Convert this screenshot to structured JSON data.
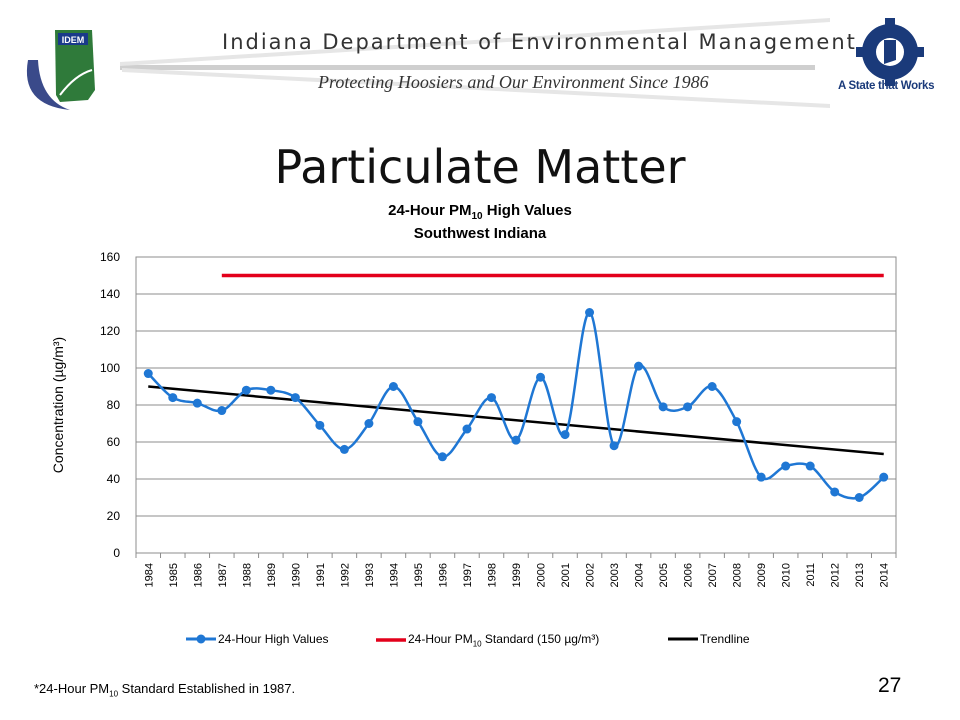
{
  "header": {
    "logo_text": "IDEM",
    "agency_name": "Indiana Department of Environmental Management",
    "tagline": "Protecting Hoosiers and Our Environment Since 1986",
    "state_slogan": "A State that Works"
  },
  "slide": {
    "title": "Particulate Matter",
    "page_number": "27",
    "footnote_pre": "*24-Hour PM",
    "footnote_sub": "10",
    "footnote_post": " Standard Established in 1987."
  },
  "chart_data": {
    "type": "line",
    "title_pre": "24-Hour PM",
    "title_sub": "10",
    "title_post": " High Values",
    "subtitle": "Southwest Indiana",
    "ylabel": "Concentration (µg/m³)",
    "xlabel": "",
    "ylim": [
      0,
      160
    ],
    "yticks": [
      0,
      20,
      40,
      60,
      80,
      100,
      120,
      140,
      160
    ],
    "grid": true,
    "legend_position": "bottom",
    "categories": [
      "1984",
      "1985",
      "1986",
      "1987",
      "1988",
      "1989",
      "1990",
      "1991",
      "1992",
      "1993",
      "1994",
      "1995",
      "1996",
      "1997",
      "1998",
      "1999",
      "2000",
      "2001",
      "2002",
      "2003",
      "2004",
      "2005",
      "2006",
      "2007",
      "2008",
      "2009",
      "2010",
      "2011",
      "2012",
      "2013",
      "2014"
    ],
    "series": [
      {
        "name": "24-Hour High Values",
        "color": "#1f77d4",
        "marker": "circle",
        "smooth": true,
        "values": [
          97,
          84,
          81,
          77,
          88,
          88,
          84,
          69,
          56,
          70,
          90,
          71,
          52,
          67,
          84,
          61,
          95,
          64,
          130,
          58,
          101,
          79,
          79,
          90,
          71,
          41,
          47,
          47,
          33,
          30,
          41
        ]
      },
      {
        "name": "24-Hour PM₁₀ Standard (150 µg/m³)",
        "legend_pre": "24-Hour PM",
        "legend_sub": "10",
        "legend_post": " Standard (150 µg/m³)",
        "color": "#e3001b",
        "x_start": "1987",
        "x_end": "2014",
        "value": 150
      },
      {
        "name": "Trendline",
        "color": "#000000",
        "x_start": "1984",
        "x_end": "2014",
        "start_value": 90,
        "end_value": 53.5
      }
    ]
  }
}
